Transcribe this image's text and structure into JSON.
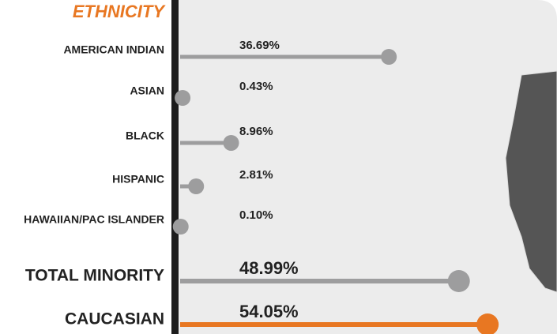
{
  "chart_data": {
    "type": "lollipop",
    "title": "ETHNICITY",
    "categories": [
      "AMERICAN INDIAN",
      "ASIAN",
      "BLACK",
      "HISPANIC",
      "HAWAIIAN/PAC ISLANDER",
      "TOTAL MINORITY",
      "CAUCASIAN"
    ],
    "values": [
      36.69,
      0.43,
      8.96,
      2.81,
      0.1,
      48.99,
      54.05
    ],
    "value_labels": [
      "36.69%",
      "0.43%",
      "8.96%",
      "2.81%",
      "0.10%",
      "48.99%",
      "54.05%"
    ],
    "colors": [
      "#9d9d9e",
      "#9d9d9e",
      "#9d9d9e",
      "#9d9d9e",
      "#9d9d9e",
      "#9d9d9e",
      "#e87722"
    ]
  }
}
